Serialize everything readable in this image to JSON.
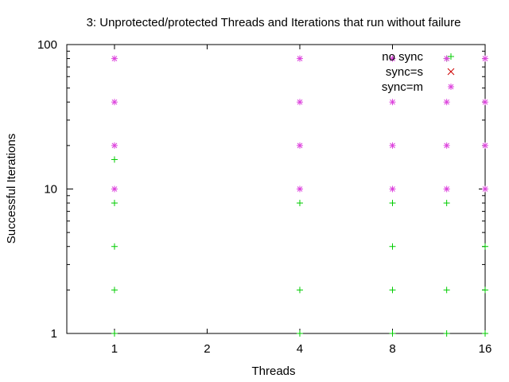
{
  "chart_data": {
    "type": "scatter",
    "title": "3: Unprotected/protected Threads and Iterations that run without failure",
    "xlabel": "Threads",
    "ylabel": "Successful Iterations",
    "xscale": "log2",
    "yscale": "log10",
    "xlim": [
      0.7,
      16
    ],
    "ylim": [
      1,
      100
    ],
    "x_ticks": [
      1,
      2,
      4,
      8,
      16
    ],
    "x_tick_labels": [
      "1",
      "2",
      "4",
      "8",
      "16"
    ],
    "y_ticks": [
      1,
      10,
      100
    ],
    "y_tick_labels": [
      "1",
      "10",
      "100"
    ],
    "grid": false,
    "legend_position": "top-right",
    "series": [
      {
        "name": "no sync",
        "marker": "+",
        "color": "#00cc00",
        "points": [
          [
            1,
            1
          ],
          [
            1,
            2
          ],
          [
            1,
            4
          ],
          [
            1,
            8
          ],
          [
            1,
            16
          ],
          [
            4,
            1
          ],
          [
            4,
            2
          ],
          [
            4,
            8
          ],
          [
            8,
            1
          ],
          [
            8,
            2
          ],
          [
            8,
            4
          ],
          [
            8,
            8
          ],
          [
            12,
            1
          ],
          [
            12,
            2
          ],
          [
            12,
            8
          ],
          [
            12,
            80
          ],
          [
            16,
            1
          ],
          [
            16,
            2
          ],
          [
            16,
            4
          ]
        ]
      },
      {
        "name": "sync=s",
        "marker": "x",
        "color": "#cc0000",
        "points": []
      },
      {
        "name": "sync=m",
        "marker": "*",
        "color": "#dd44dd",
        "points": [
          [
            1,
            10
          ],
          [
            1,
            20
          ],
          [
            1,
            40
          ],
          [
            1,
            80
          ],
          [
            4,
            10
          ],
          [
            4,
            20
          ],
          [
            4,
            40
          ],
          [
            4,
            80
          ],
          [
            8,
            10
          ],
          [
            8,
            20
          ],
          [
            8,
            40
          ],
          [
            8,
            80
          ],
          [
            12,
            10
          ],
          [
            12,
            20
          ],
          [
            12,
            40
          ],
          [
            12,
            80
          ],
          [
            16,
            10
          ],
          [
            16,
            20
          ],
          [
            16,
            40
          ],
          [
            16,
            80
          ]
        ]
      }
    ]
  }
}
